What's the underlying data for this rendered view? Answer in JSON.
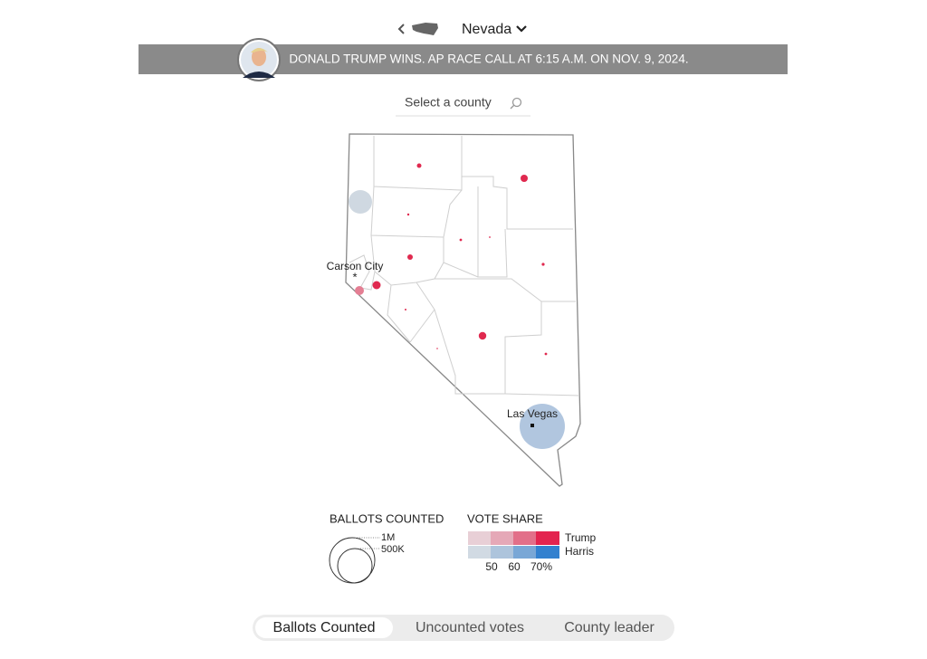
{
  "nav": {
    "state": "Nevada"
  },
  "banner": {
    "text": "DONALD TRUMP WINS. AP RACE CALL AT 6:15 A.M. ON NOV. 9, 2024."
  },
  "search": {
    "placeholder": "Select a county"
  },
  "map": {
    "cities": [
      "Carson City",
      "Las Vegas"
    ]
  },
  "legend": {
    "ballots": {
      "title": "BALLOTS COUNTED",
      "labels": [
        "1M",
        "500K"
      ]
    },
    "vote_share": {
      "title": "VOTE SHARE",
      "candidates": [
        "Trump",
        "Harris"
      ],
      "labels": [
        "50",
        "60",
        "70%"
      ]
    }
  },
  "tabs": [
    "Ballots Counted",
    "Uncounted votes",
    "County leader"
  ]
}
